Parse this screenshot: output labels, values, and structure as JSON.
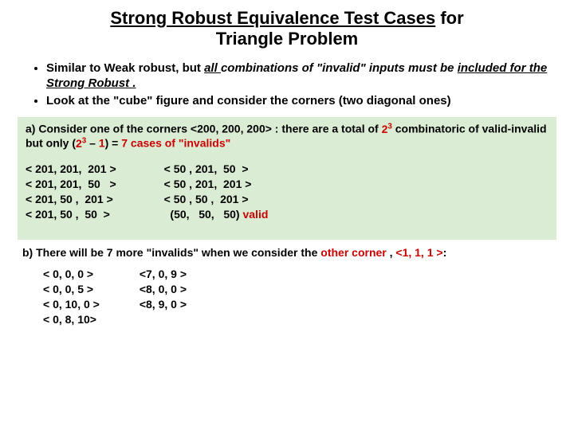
{
  "title": {
    "line1_underlined": "Strong Robust Equivalence Test Cases",
    "line1_after": " for",
    "line2": "Triangle Problem"
  },
  "bullets": {
    "b1_pre": "Similar to Weak robust, but ",
    "b1_ul1": "all ",
    "b1_mid": "combinations of \"invalid\" inputs must be ",
    "b1_ul2": "included for the Strong Robust .",
    "b2": "Look at the \"cube\" figure and consider the corners (two diagonal ones)"
  },
  "box": {
    "head_pre": "a) Consider one of the corners <200, 200, 200> :  there  are a total of ",
    "head_red1": "2",
    "head_sup1": "3",
    "head_mid": " combinatoric of valid-invalid but only (",
    "head_red2": "2",
    "head_sup2": "3",
    "head_mid2": " – ",
    "head_red3": "1",
    "head_mid3": ") = ",
    "head_red4": "7 cases of  \"invalids\"",
    "left": {
      "r1": "< 201, 201,  201 >",
      "r2": "< 201, 201,  50   >",
      "r3": "< 201, 50 ,  201 >",
      "r4": "< 201, 50 ,  50  >"
    },
    "right": {
      "r1": "< 50 , 201,  50  >",
      "r2": "< 50 , 201,  201 >",
      "r3": "< 50 , 50 ,  201 >",
      "r4a": "  (50,   50,   50)",
      "r4b": " valid"
    }
  },
  "section_b": {
    "pre": "b) There will be 7 more \"invalids\" when we consider the ",
    "red1": "other corner ",
    "mid": ", ",
    "red2": "<1, 1, 1 >",
    "after": ":"
  },
  "list_b": {
    "left": {
      "r1": "< 0, 0, 0 >",
      "r2": "< 0, 0, 5 >",
      "r3": "< 0, 10, 0 >",
      "r4": "< 0, 8, 10>"
    },
    "right": {
      "r1": "<7, 0, 9 >",
      "r2": "<8, 0, 0 >",
      "r3": "<8, 9, 0 >"
    }
  }
}
